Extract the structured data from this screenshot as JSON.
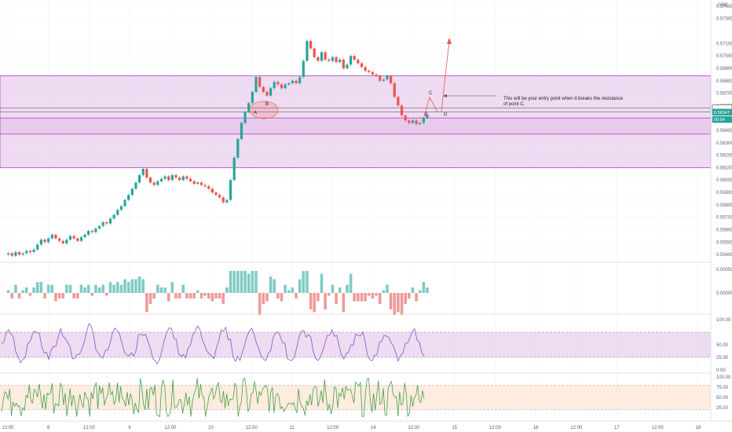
{
  "currency": "GBP",
  "chart_data": {
    "type": "candlestick",
    "price_axis": {
      "ticks": [
        "0.57400",
        "0.57300",
        "0.57100",
        "0.57000",
        "0.56900",
        "0.56800",
        "0.56700",
        "0.56600",
        "0.56400",
        "0.56300",
        "0.56200",
        "0.56100",
        "0.56000",
        "0.55900",
        "0.55800",
        "0.55700",
        "0.55600",
        "0.55500",
        "0.55400"
      ],
      "range": [
        0.5535,
        0.5745
      ]
    },
    "price_tags": [
      {
        "label": "0.56581",
        "value": 0.56581,
        "style": "white"
      },
      {
        "label": "0.56547",
        "value": 0.56547,
        "style": "green"
      },
      {
        "label": "00:54",
        "value": 0.56488,
        "style": "green"
      }
    ],
    "time_axis": [
      "12:00",
      "8",
      "12:00",
      "9",
      "12:00",
      "10",
      "12:00",
      "11",
      "12:00",
      "14",
      "12:00",
      "15",
      "12:00",
      "16",
      "12:00",
      "17",
      "12:00",
      "18"
    ],
    "zones": [
      {
        "name": "upper-zone",
        "top": 0.5684,
        "bottom": 0.561
      },
      {
        "name": "lower-zone",
        "top": 0.565,
        "bottom": 0.5637
      }
    ],
    "key_lines": [
      0.56581,
      0.56547
    ],
    "series_close": [
      0.554,
      0.5541,
      0.5539,
      0.5542,
      0.554,
      0.5541,
      0.5543,
      0.5542,
      0.5544,
      0.5548,
      0.5552,
      0.555,
      0.5553,
      0.5556,
      0.5553,
      0.5551,
      0.5549,
      0.5552,
      0.5555,
      0.5553,
      0.5551,
      0.5554,
      0.5556,
      0.5559,
      0.5558,
      0.5561,
      0.5563,
      0.5566,
      0.5565,
      0.5569,
      0.5572,
      0.5576,
      0.5579,
      0.5584,
      0.5588,
      0.5593,
      0.5598,
      0.5604,
      0.5609,
      0.5602,
      0.5598,
      0.5596,
      0.5599,
      0.5601,
      0.5603,
      0.56,
      0.5604,
      0.5602,
      0.56,
      0.5603,
      0.5601,
      0.5599,
      0.5597,
      0.5598,
      0.5596,
      0.5595,
      0.5593,
      0.559,
      0.5588,
      0.5586,
      0.5582,
      0.5584,
      0.56,
      0.5618,
      0.5633,
      0.5646,
      0.5655,
      0.5662,
      0.5671,
      0.5683,
      0.5675,
      0.5671,
      0.5668,
      0.5674,
      0.5679,
      0.5677,
      0.5674,
      0.5677,
      0.5678,
      0.568,
      0.5678,
      0.5683,
      0.5696,
      0.5712,
      0.5706,
      0.5699,
      0.5696,
      0.5703,
      0.5697,
      0.5696,
      0.5699,
      0.5695,
      0.5697,
      0.569,
      0.5693,
      0.57,
      0.5697,
      0.5694,
      0.5691,
      0.5688,
      0.5687,
      0.5685,
      0.5684,
      0.568,
      0.5681,
      0.5684,
      0.5678,
      0.5667,
      0.566,
      0.5652,
      0.5648,
      0.5646,
      0.5648,
      0.5645,
      0.5646,
      0.565,
      0.5652
    ],
    "annotations": {
      "points": [
        "A",
        "B",
        "C",
        "D"
      ],
      "note_line1": "This will be your entry point when it breaks the resistance",
      "note_line2": "of point C."
    },
    "indicators": [
      {
        "name": "histogram",
        "ticks": [
          "0.00050",
          "0.00000"
        ]
      },
      {
        "name": "oscillator-purple",
        "ticks": [
          "100.00",
          "50.00",
          "25.00",
          "0.00"
        ],
        "band": [
          25,
          75
        ],
        "color": "#7e57c2"
      },
      {
        "name": "oscillator-green",
        "ticks": [
          "100.00",
          "75.00",
          "50.00",
          "25.00"
        ],
        "band": [
          20,
          80
        ],
        "color": "#43a047"
      }
    ]
  },
  "colors": {
    "up": "#26a69a",
    "down": "#ef5350",
    "zone_fill": "#e1bee7",
    "zone_border": "#ab47bc",
    "grid": "#f0f3fa"
  }
}
